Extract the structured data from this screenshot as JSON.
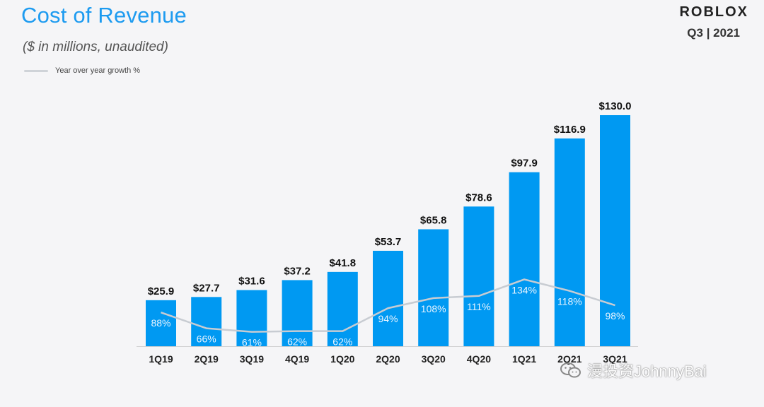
{
  "header": {
    "title": "Cost of Revenue",
    "subtitle": "($ in millions, unaudited)",
    "brand": "ROBLOX",
    "period": "Q3 | 2021"
  },
  "legend": {
    "label": "Year over year growth %"
  },
  "watermark": {
    "text": "漫投资JohnnyBai"
  },
  "colors": {
    "bar": "#0099f2",
    "line": "#c8ccd2",
    "title": "#1d9bf0"
  },
  "chart_data": {
    "type": "bar",
    "title": "Cost of Revenue",
    "categories": [
      "1Q19",
      "2Q19",
      "3Q19",
      "4Q19",
      "1Q20",
      "2Q20",
      "3Q20",
      "4Q20",
      "1Q21",
      "2Q21",
      "3Q21"
    ],
    "series": [
      {
        "values": [
          25.9,
          27.7,
          31.6,
          37.2,
          41.8,
          53.7,
          65.8,
          78.6,
          97.9,
          116.9,
          130.0
        ],
        "value_labels": [
          "$25.9",
          "$27.7",
          "$31.6",
          "$37.2",
          "$41.8",
          "$53.7",
          "$65.8",
          "$78.6",
          "$97.9",
          "$116.9",
          "$130.0"
        ]
      },
      {
        "name": "Year over year growth %",
        "type": "line",
        "values": [
          88,
          66,
          61,
          62,
          62,
          94,
          108,
          111,
          134,
          118,
          98
        ],
        "value_labels": [
          "88%",
          "66%",
          "61%",
          "62%",
          "62%",
          "94%",
          "108%",
          "111%",
          "134%",
          "118%",
          "98%"
        ]
      }
    ],
    "ylim": [
      0,
      130
    ],
    "legend_position": "top-left",
    "grid": false
  }
}
